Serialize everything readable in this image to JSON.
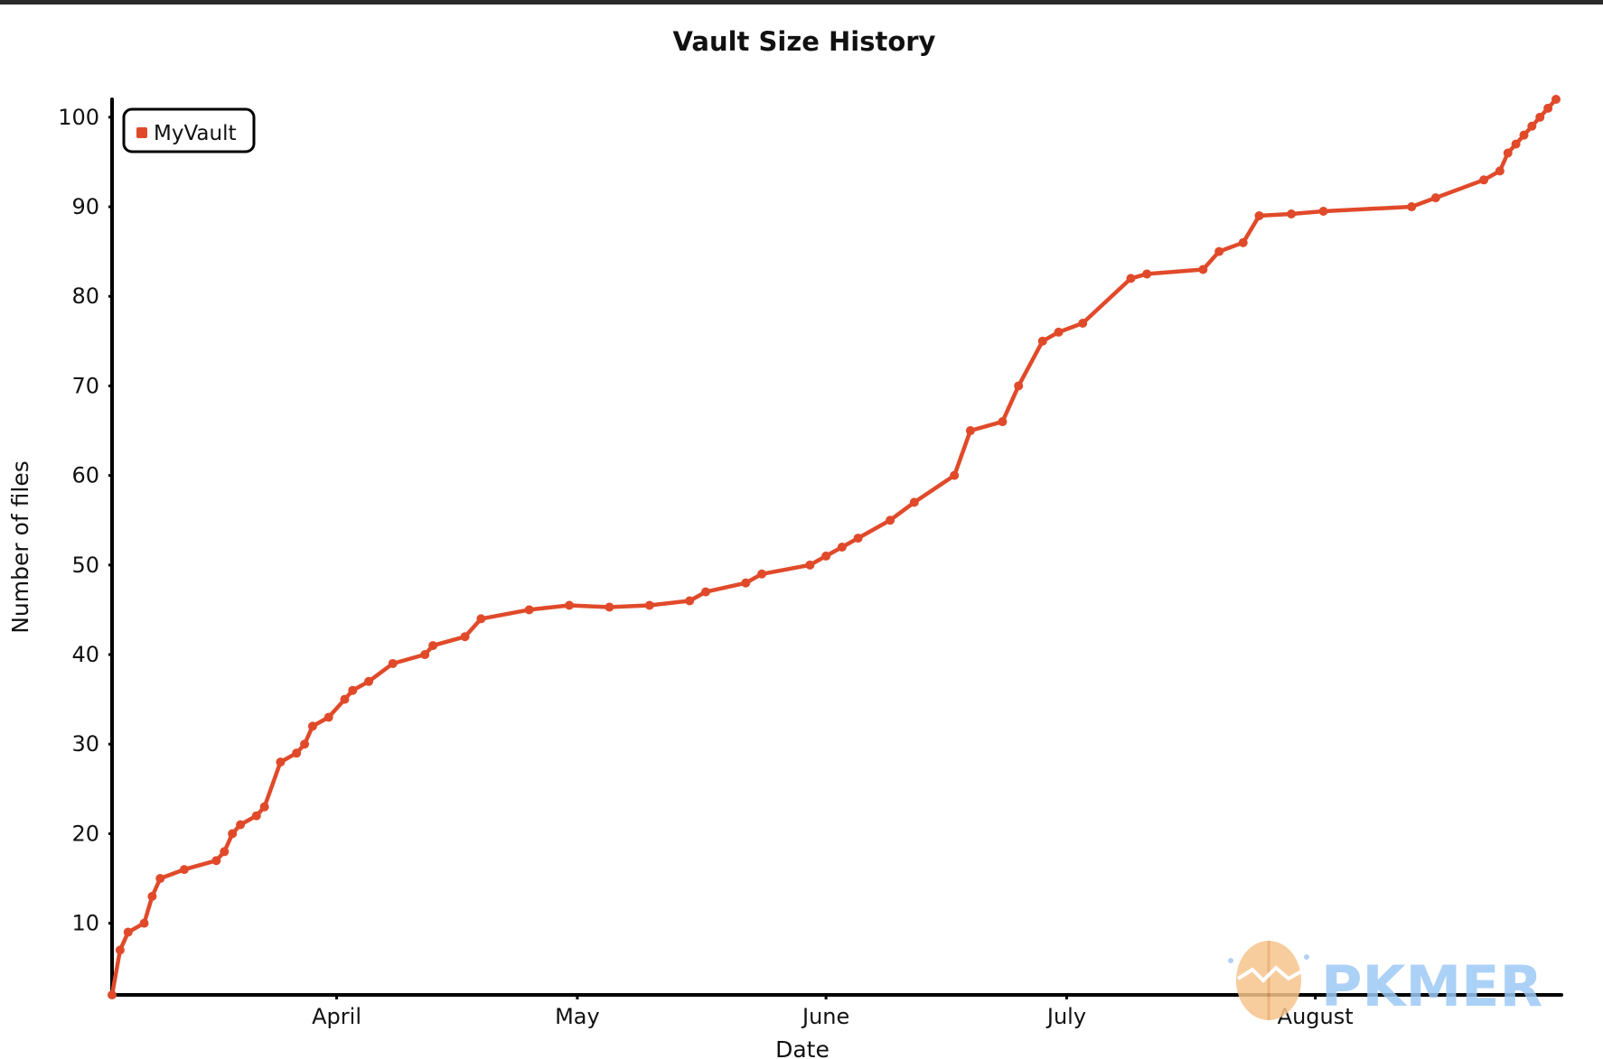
{
  "chart_data": {
    "type": "line",
    "title": "Vault Size History",
    "xlabel": "Date",
    "ylabel": "Number of files",
    "x_tick_labels": [
      "April",
      "May",
      "June",
      "July",
      "August"
    ],
    "x_tick_dates": [
      "2023-04-01",
      "2023-05-01",
      "2023-06-01",
      "2023-07-01",
      "2023-08-01"
    ],
    "xlim": [
      "2023-03-04",
      "2023-08-31"
    ],
    "y_ticks": [
      10,
      20,
      30,
      40,
      50,
      60,
      70,
      80,
      90,
      100
    ],
    "ylim": [
      2,
      102
    ],
    "grid": false,
    "legend_position": "top-left",
    "series": [
      {
        "name": "MyVault",
        "color": "#e04a2a",
        "x": [
          "2023-03-04",
          "2023-03-05",
          "2023-03-06",
          "2023-03-08",
          "2023-03-09",
          "2023-03-10",
          "2023-03-13",
          "2023-03-17",
          "2023-03-18",
          "2023-03-19",
          "2023-03-20",
          "2023-03-22",
          "2023-03-23",
          "2023-03-25",
          "2023-03-27",
          "2023-03-28",
          "2023-03-29",
          "2023-03-31",
          "2023-04-02",
          "2023-04-03",
          "2023-04-05",
          "2023-04-08",
          "2023-04-12",
          "2023-04-13",
          "2023-04-17",
          "2023-04-19",
          "2023-04-25",
          "2023-04-30",
          "2023-05-05",
          "2023-05-10",
          "2023-05-15",
          "2023-05-17",
          "2023-05-22",
          "2023-05-24",
          "2023-05-30",
          "2023-06-01",
          "2023-06-03",
          "2023-06-05",
          "2023-06-09",
          "2023-06-12",
          "2023-06-17",
          "2023-06-19",
          "2023-06-23",
          "2023-06-25",
          "2023-06-28",
          "2023-06-30",
          "2023-07-03",
          "2023-07-09",
          "2023-07-11",
          "2023-07-18",
          "2023-07-20",
          "2023-07-23",
          "2023-07-25",
          "2023-07-29",
          "2023-08-02",
          "2023-08-13",
          "2023-08-16",
          "2023-08-22",
          "2023-08-24",
          "2023-08-25",
          "2023-08-26",
          "2023-08-27",
          "2023-08-28",
          "2023-08-29",
          "2023-08-30",
          "2023-08-31"
        ],
        "values": [
          2,
          7,
          9,
          10,
          13,
          15,
          16,
          17,
          18,
          20,
          21,
          22,
          23,
          28,
          29,
          30,
          32,
          33,
          35,
          36,
          37,
          39,
          40,
          41,
          42,
          44,
          45,
          45.5,
          45.3,
          45.5,
          46,
          47,
          48,
          49,
          50,
          51,
          52,
          53,
          55,
          57,
          60,
          65,
          66,
          70,
          75,
          76,
          77,
          82,
          82.5,
          83,
          85,
          86,
          89,
          89.2,
          89.5,
          90,
          91,
          93,
          94,
          96,
          97,
          98,
          99,
          100,
          101,
          102
        ]
      }
    ]
  },
  "watermark": {
    "text": "PKMER"
  }
}
